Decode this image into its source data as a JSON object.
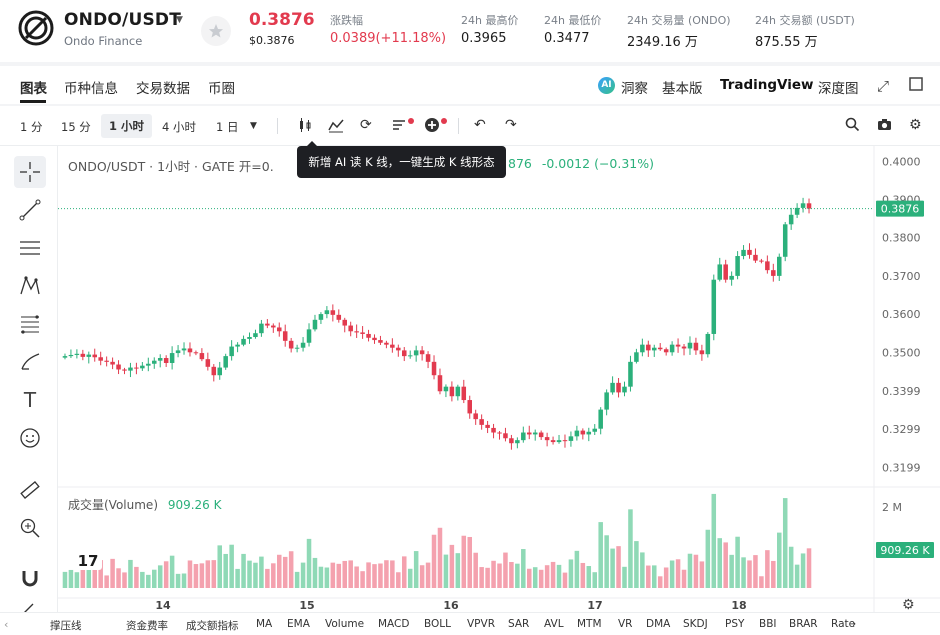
{
  "header": {
    "pair": "ONDO/USDT",
    "pair_sub": "Ondo Finance",
    "price": "0.3876",
    "price_usd": "$0.3876",
    "change_label": "涨跌幅",
    "change_value": "0.0389(+11.18%)",
    "stats": [
      {
        "label": "24h 最高价",
        "value": "0.3965"
      },
      {
        "label": "24h 最低价",
        "value": "0.3477"
      },
      {
        "label": "24h 交易量 (ONDO)",
        "value": "2349.16 万"
      },
      {
        "label": "24h 交易额 (USDT)",
        "value": "875.55 万"
      }
    ]
  },
  "tabs": [
    "图表",
    "币种信息",
    "交易数据",
    "币圈"
  ],
  "views": {
    "ai": "洞察",
    "basic": "基本版",
    "tradingview": "TradingView",
    "depth": "深度图",
    "ai_badge": "AI"
  },
  "timeframes": [
    "1 分",
    "15 分",
    "1 小时",
    "4 小时",
    "1 日"
  ],
  "active_timeframe_index": 2,
  "chart_legend": {
    "title": "ONDO/USDT · 1小时 · GATE",
    "open_label": "开=0.",
    "partial_close": "876",
    "change": "-0.0012 (−0.31%)"
  },
  "tooltip": "新增 AI 读 K 线，一键生成 K 线形态",
  "volume_legend": {
    "label": "成交量(Volume)",
    "value": "909.26 K"
  },
  "price_axis": [
    "0.4000",
    "0.3900",
    "0.3800",
    "0.3700",
    "0.3600",
    "0.3500",
    "0.3399",
    "0.3299",
    "0.3199"
  ],
  "price_tag": "0.3876",
  "volume_axis_top": "2 M",
  "volume_tag": "909.26 K",
  "x_axis": [
    "14",
    "15",
    "16",
    "17",
    "18"
  ],
  "indicators": [
    "撑压线",
    "资金费率",
    "成交额指标",
    "MA",
    "EMA",
    "Volume",
    "MACD",
    "BOLL",
    "VPVR",
    "SAR",
    "AVL",
    "MTM",
    "VR",
    "DMA",
    "SKDJ",
    "PSY",
    "BBI",
    "BRAR",
    "Rate"
  ],
  "colors": {
    "up": "#2bb07b",
    "down": "#e23a4e",
    "vol_up": "#8fd9b6",
    "vol_down": "#f4a1ae"
  },
  "chart_data": {
    "type": "candlestick",
    "x_ticks": [
      "14",
      "15",
      "16",
      "17",
      "18"
    ],
    "ylim": [
      0.315,
      0.404
    ],
    "volume_ylim": [
      0,
      2200000
    ],
    "last_price": 0.3876,
    "last_volume": 909260,
    "close_series": [
      0.349,
      0.3493,
      0.3496,
      0.3488,
      0.3494,
      0.3487,
      0.3478,
      0.3475,
      0.3468,
      0.3455,
      0.3452,
      0.346,
      0.3458,
      0.3465,
      0.347,
      0.3478,
      0.3485,
      0.3472,
      0.3498,
      0.3505,
      0.351,
      0.35,
      0.3498,
      0.3482,
      0.3462,
      0.344,
      0.346,
      0.349,
      0.3515,
      0.352,
      0.3535,
      0.354,
      0.355,
      0.3575,
      0.357,
      0.3565,
      0.3555,
      0.353,
      0.351,
      0.3512,
      0.3525,
      0.356,
      0.3585,
      0.36,
      0.361,
      0.3598,
      0.3585,
      0.357,
      0.3555,
      0.3552,
      0.3548,
      0.3538,
      0.3532,
      0.3525,
      0.352,
      0.3512,
      0.3505,
      0.349,
      0.3492,
      0.3505,
      0.3495,
      0.3475,
      0.344,
      0.3398,
      0.341,
      0.3385,
      0.341,
      0.3375,
      0.334,
      0.3325,
      0.331,
      0.3302,
      0.329,
      0.3288,
      0.3275,
      0.3262,
      0.327,
      0.329,
      0.3285,
      0.329,
      0.3278,
      0.327,
      0.3265,
      0.327,
      0.3268,
      0.328,
      0.3295,
      0.3285,
      0.3292,
      0.33,
      0.335,
      0.3395,
      0.342,
      0.3395,
      0.341,
      0.3475,
      0.35,
      0.352,
      0.3505,
      0.3512,
      0.3508,
      0.35,
      0.352,
      0.3515,
      0.351,
      0.3525,
      0.3505,
      0.3495,
      0.3548,
      0.369,
      0.373,
      0.369,
      0.37,
      0.3752,
      0.3768,
      0.3755,
      0.374,
      0.3738,
      0.3715,
      0.37,
      0.375,
      0.3835,
      0.386,
      0.3878,
      0.389,
      0.3876
    ]
  }
}
